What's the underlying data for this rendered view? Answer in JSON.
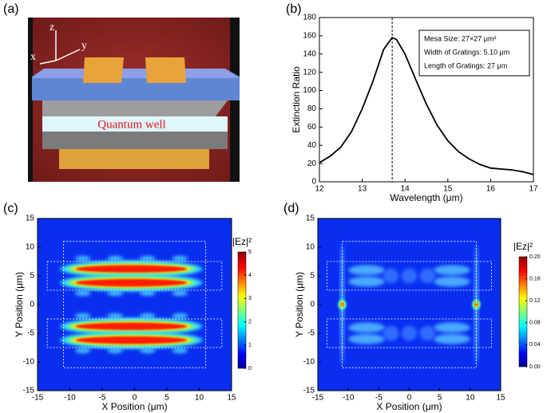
{
  "diagram": {
    "label": "(a)",
    "axis_labels": [
      "z",
      "y",
      "x"
    ],
    "layer_label": "Quantum well"
  },
  "chart_data": [
    {
      "type": "line",
      "panel_label": "(b)",
      "xlabel": "Wavelength (μm)",
      "ylabel": "Extinction Ratio",
      "x": [
        12,
        12.25,
        12.5,
        12.75,
        13,
        13.25,
        13.5,
        13.7,
        13.8,
        14,
        14.25,
        14.5,
        14.75,
        15,
        15.25,
        15.5,
        15.75,
        16,
        16.25,
        16.5,
        16.75,
        17
      ],
      "series": [
        {
          "color": "#000000",
          "values": [
            21,
            28,
            38,
            55,
            80,
            110,
            145,
            158,
            156,
            140,
            112,
            85,
            62,
            45,
            33,
            25,
            19,
            15,
            14,
            13,
            11,
            8
          ]
        }
      ],
      "xlim": [
        12,
        17
      ],
      "ylim": [
        0,
        180
      ],
      "xticks": [
        12,
        13,
        14,
        15,
        16,
        17
      ],
      "yticks": [
        0,
        20,
        40,
        60,
        80,
        100,
        120,
        140,
        160,
        180
      ],
      "marker_x": 13.7,
      "annotation_lines": [
        "Mesa Size: 27×27 μm²",
        "Width of Gratings: 5.10 μm",
        "Length of Gratings: 27 μm"
      ]
    },
    {
      "type": "heatmap",
      "panel_label": "(c)",
      "xlabel": "X Position (μm)",
      "ylabel": "Y Position (μm)",
      "xlim": [
        -15,
        15
      ],
      "ylim": [
        -15,
        15
      ],
      "xticks": [
        -15,
        -10,
        -5,
        0,
        5,
        10,
        15
      ],
      "yticks": [
        -15,
        -10,
        -5,
        0,
        5,
        10,
        15
      ],
      "colorbar_title": "|Ez|²",
      "clim": [
        0,
        5
      ],
      "cticks": [
        0,
        1,
        2,
        3,
        4,
        5
      ]
    },
    {
      "type": "heatmap",
      "panel_label": "(d)",
      "xlabel": "X Position (μm)",
      "ylabel": "Y Position (μm)",
      "xlim": [
        -15,
        15
      ],
      "ylim": [
        -15,
        15
      ],
      "xticks": [
        -15,
        -10,
        -5,
        0,
        5,
        10,
        15
      ],
      "yticks": [
        -15,
        -10,
        -5,
        0,
        5,
        10,
        15
      ],
      "colorbar_title": "|Ez|²",
      "clim": [
        0,
        0.2
      ],
      "cticks": [
        {
          "value": 0,
          "label": "0.00"
        },
        {
          "value": 0.04,
          "label": "0.04"
        },
        {
          "value": 0.08,
          "label": "0.08"
        },
        {
          "value": 0.12,
          "label": "0.12"
        },
        {
          "value": 0.16,
          "label": "0.16"
        },
        {
          "value": 0.2,
          "label": "0.20"
        }
      ]
    }
  ]
}
